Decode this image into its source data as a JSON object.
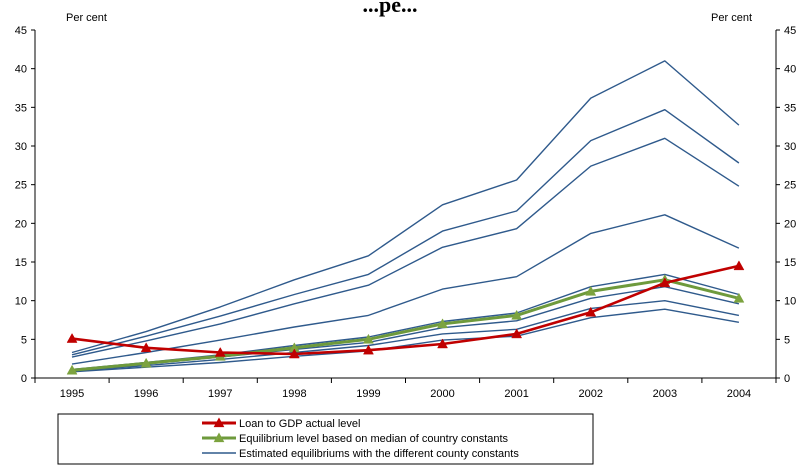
{
  "chart_data": {
    "type": "line",
    "title": "...pe...",
    "ylabel_left": "Per cent",
    "ylabel_right": "Per cent",
    "x": [
      "1995",
      "1996",
      "1997",
      "1998",
      "1999",
      "2000",
      "2001",
      "2002",
      "2003",
      "2004"
    ],
    "ylim": [
      0,
      45
    ],
    "yticks": [
      0,
      5,
      10,
      15,
      20,
      25,
      30,
      35,
      40,
      45
    ],
    "yticks_right": [
      "0",
      "5",
      "10",
      "15",
      "20",
      "25",
      "30",
      "35",
      "40",
      "45"
    ],
    "grid": false,
    "legend_position": "bottom",
    "series": [
      {
        "name": "Loan to GDP actual level",
        "style": "actual",
        "color": "#c00000",
        "marker": "triangle",
        "values": [
          5.1,
          3.9,
          3.3,
          3.1,
          3.6,
          4.4,
          5.7,
          8.5,
          12.3,
          14.5
        ]
      },
      {
        "name": "Equilibrium level based on median of country constants",
        "style": "median",
        "color": "#6e9a3c",
        "marker": "triangle",
        "values": [
          1.0,
          1.9,
          2.8,
          3.9,
          5.0,
          7.0,
          8.1,
          11.2,
          12.7,
          10.3
        ]
      },
      {
        "name": "Estimated equilibriums with the different county constants",
        "style": "thin",
        "color": "#2f5a8c",
        "values": [
          3.3,
          6.0,
          9.2,
          12.7,
          15.8,
          22.4,
          25.6,
          36.2,
          41.0,
          32.7
        ]
      },
      {
        "name": "",
        "style": "thin",
        "color": "#2f5a8c",
        "values": [
          3.0,
          5.4,
          8.0,
          10.8,
          13.4,
          19.0,
          21.6,
          30.7,
          34.7,
          27.8
        ]
      },
      {
        "name": "",
        "style": "thin",
        "color": "#2f5a8c",
        "values": [
          2.7,
          4.8,
          7.0,
          9.6,
          12.0,
          16.9,
          19.3,
          27.4,
          31.0,
          24.8
        ]
      },
      {
        "name": "",
        "style": "thin",
        "color": "#2f5a8c",
        "values": [
          1.8,
          3.3,
          4.9,
          6.6,
          8.1,
          11.5,
          13.1,
          18.7,
          21.1,
          16.8
        ]
      },
      {
        "name": "",
        "style": "thin",
        "color": "#2f5a8c",
        "values": [
          1.1,
          2.0,
          3.0,
          4.2,
          5.3,
          7.3,
          8.4,
          11.8,
          13.4,
          10.8
        ]
      },
      {
        "name": "",
        "style": "thin",
        "color": "#2f5a8c",
        "values": [
          1.0,
          1.8,
          2.7,
          3.7,
          4.6,
          6.5,
          7.4,
          10.3,
          11.8,
          9.6
        ]
      },
      {
        "name": "",
        "style": "thin",
        "color": "#2f5a8c",
        "values": [
          0.9,
          1.6,
          2.4,
          3.3,
          4.2,
          5.7,
          6.3,
          9.0,
          10.0,
          8.1
        ]
      },
      {
        "name": "",
        "style": "thin",
        "color": "#2f5a8c",
        "values": [
          0.8,
          1.4,
          2.0,
          2.8,
          3.5,
          4.9,
          5.4,
          7.8,
          8.9,
          7.2
        ]
      }
    ]
  }
}
